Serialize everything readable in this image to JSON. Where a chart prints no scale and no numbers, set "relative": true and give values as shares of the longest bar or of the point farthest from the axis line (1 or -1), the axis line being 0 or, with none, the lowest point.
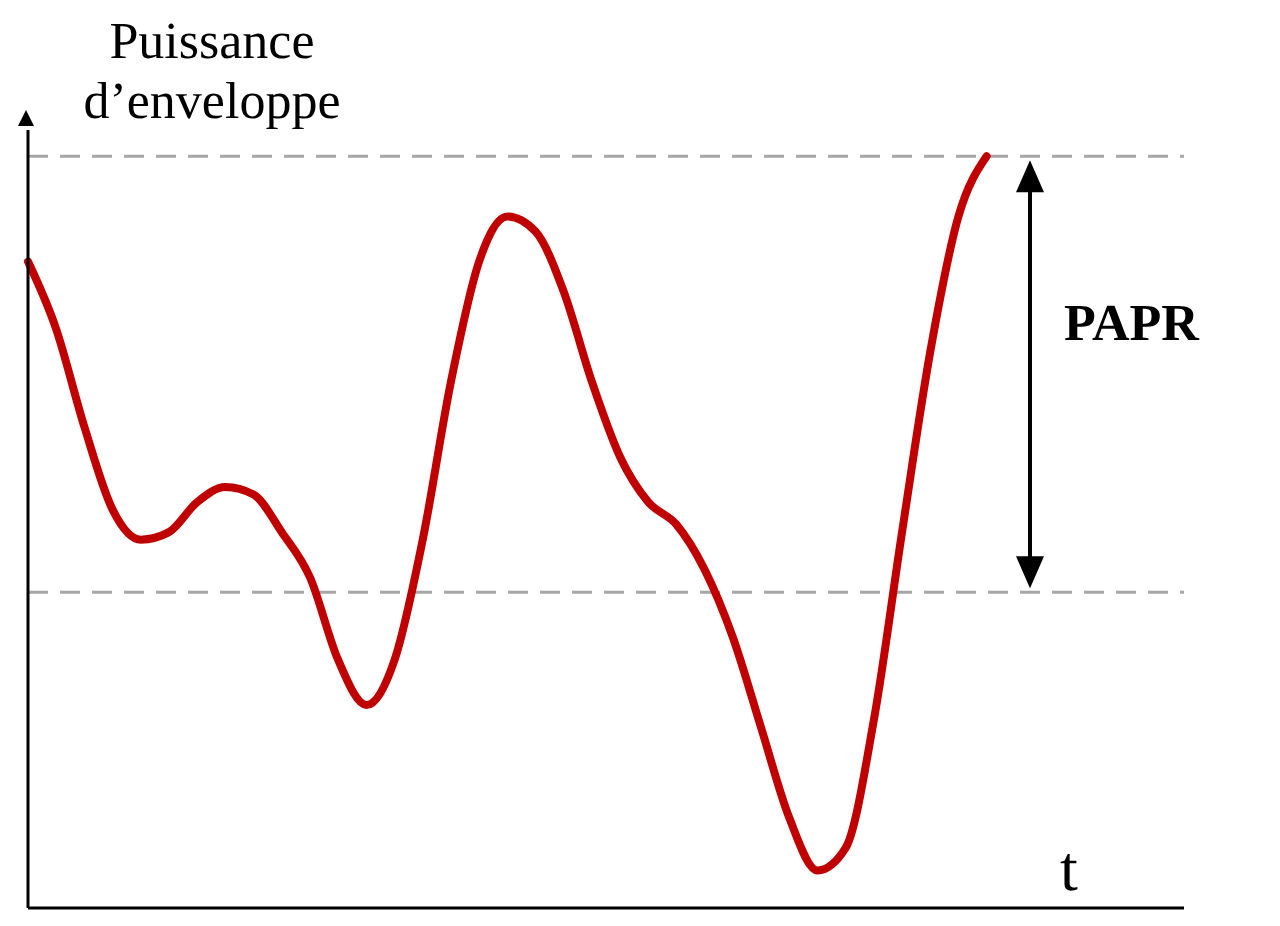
{
  "chart_data": {
    "type": "line",
    "relative": true,
    "ylabel": "Puissance d’enveloppe",
    "xlabel": "t",
    "categories": [
      null,
      null,
      null,
      null,
      null,
      null,
      null,
      null,
      null,
      null,
      null,
      null,
      null,
      null,
      null,
      null,
      null,
      null,
      null,
      null,
      null,
      null,
      null,
      null,
      null,
      null,
      null,
      null,
      null,
      null,
      null,
      null,
      null,
      null,
      null,
      null,
      null,
      null,
      null,
      null,
      null,
      null
    ],
    "series": [
      {
        "color": "#c00000",
        "values": [
          0.86,
          0.77,
          0.64,
          0.53,
          0.49,
          0.5,
          0.54,
          0.56,
          0.55,
          0.5,
          0.44,
          0.33,
          0.27,
          0.33,
          0.49,
          0.7,
          0.86,
          0.92,
          0.9,
          0.82,
          0.7,
          0.6,
          0.54,
          0.51,
          0.45,
          0.36,
          0.24,
          0.12,
          0.05,
          0.08,
          0.25,
          0.5,
          0.74,
          0.92,
          1,
          null,
          null,
          null,
          null,
          null,
          null,
          null
        ]
      }
    ],
    "ref_lines": [
      {
        "axis": "y",
        "value": 1,
        "color": "#a6a6a6",
        "line_style": "dashed"
      },
      {
        "axis": "y",
        "value": 0.42,
        "color": "#a6a6a6",
        "line_style": "dashed"
      }
    ],
    "annotations": [
      "PAPR"
    ]
  }
}
